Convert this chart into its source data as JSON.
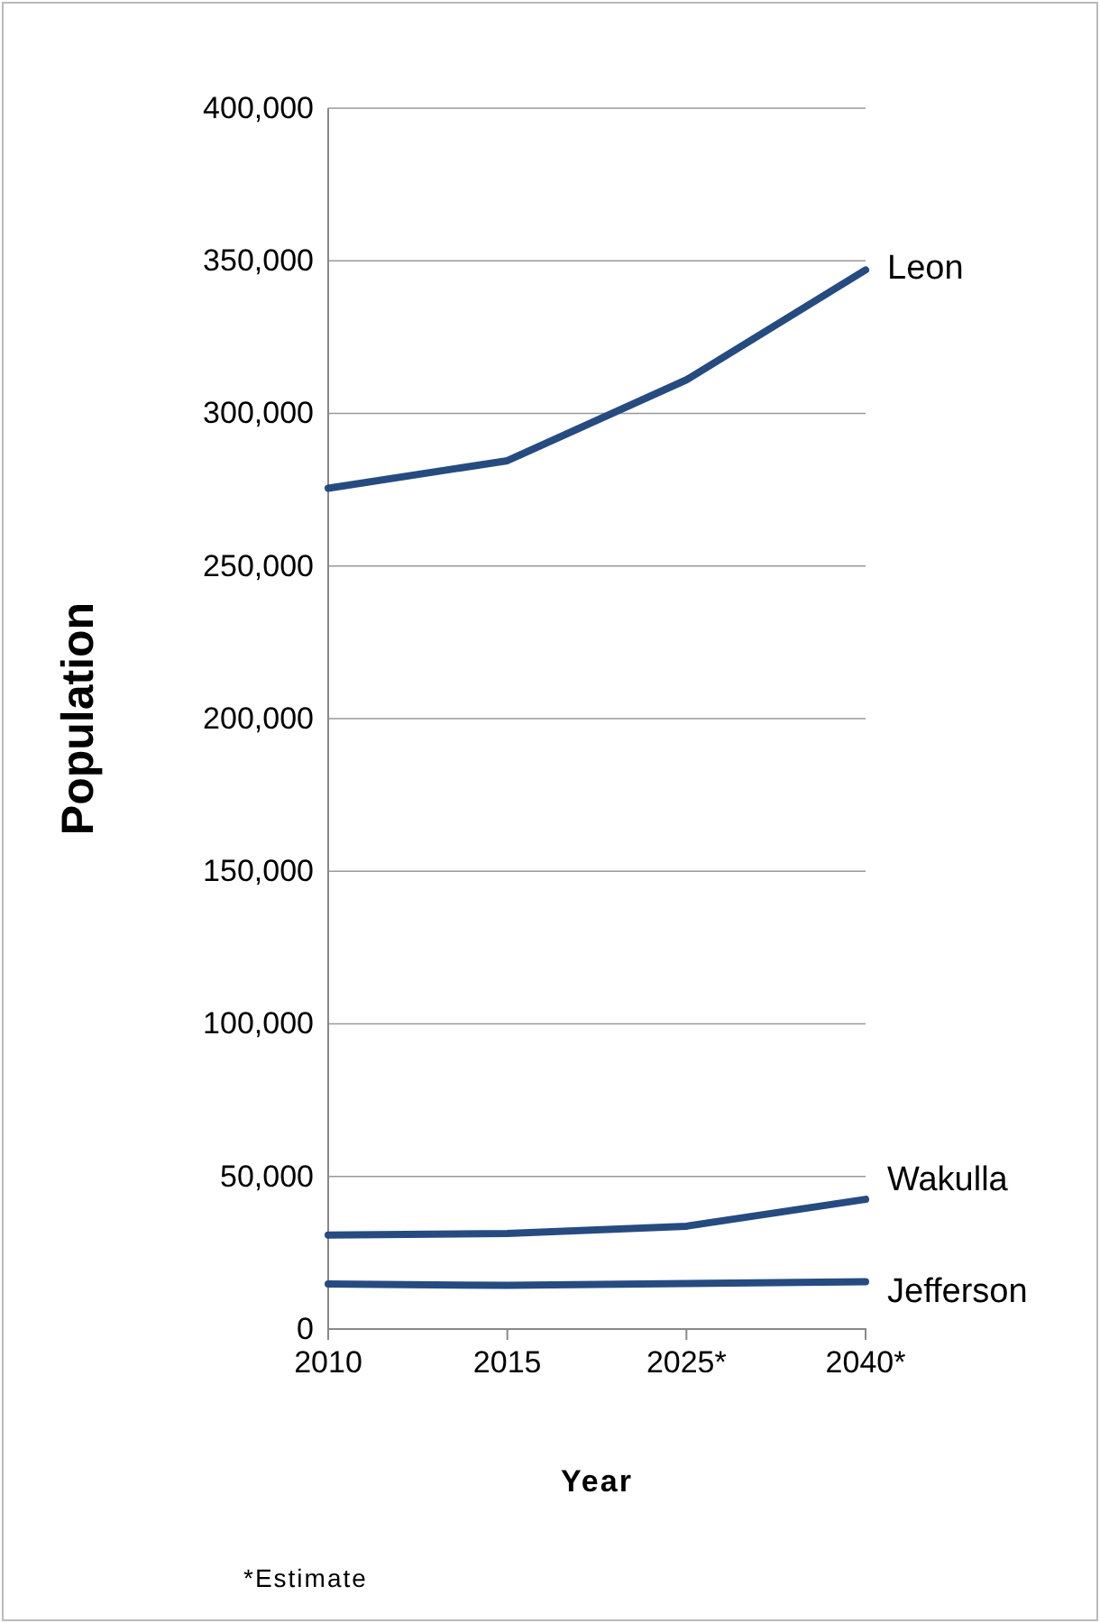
{
  "chart_data": {
    "type": "line",
    "xlabel": "Year",
    "ylabel": "Population",
    "categories": [
      "2010",
      "2015",
      "2025*",
      "2040*"
    ],
    "series": [
      {
        "name": "Leon",
        "color": "#264b80",
        "values": [
          275500,
          284500,
          311000,
          347000
        ]
      },
      {
        "name": "Wakulla",
        "color": "#264b80",
        "values": [
          30800,
          31300,
          33700,
          42500
        ]
      },
      {
        "name": "Jefferson",
        "color": "#264b80",
        "values": [
          14800,
          14300,
          14900,
          15500
        ]
      }
    ],
    "ylim": [
      0,
      400000
    ],
    "yticks": [
      {
        "value": 0,
        "label": "0"
      },
      {
        "value": 50000,
        "label": "50,000"
      },
      {
        "value": 100000,
        "label": "100,000"
      },
      {
        "value": 150000,
        "label": "150,000"
      },
      {
        "value": 200000,
        "label": "200,000"
      },
      {
        "value": 250000,
        "label": "250,000"
      },
      {
        "value": 300000,
        "label": "300,000"
      },
      {
        "value": 350000,
        "label": "350,000"
      },
      {
        "value": 400000,
        "label": "400,000"
      }
    ],
    "grid": "y",
    "legend": false,
    "marker": "none",
    "line_style": "solid",
    "annotations": [
      "*Estimate"
    ]
  }
}
